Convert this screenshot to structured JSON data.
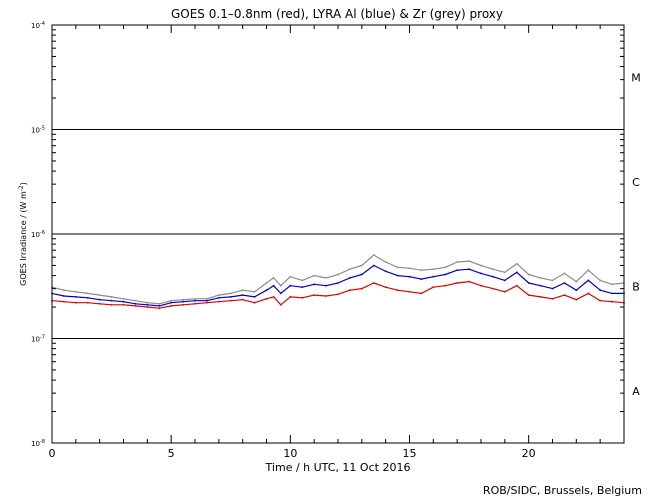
{
  "chart_data": {
    "type": "line",
    "title": "GOES 0.1–0.8nm (red), LYRA Al (blue) & Zr (grey) proxy",
    "xlabel": "Time / h UTC, 11 Oct 2016",
    "ylabel": "GOES Irradiance / (W m",
    "ylabel_exp": "-2",
    "ylabel_close": ")",
    "x_range": [
      0,
      24
    ],
    "y_range_log10": [
      -8,
      -4
    ],
    "x_ticks": [
      {
        "value": 0,
        "label": "0"
      },
      {
        "value": 5,
        "label": "5"
      },
      {
        "value": 10,
        "label": "10"
      },
      {
        "value": 15,
        "label": "15"
      },
      {
        "value": 20,
        "label": "20"
      }
    ],
    "y_ticks": [
      {
        "value": -8,
        "base": "10",
        "exp": "-8"
      },
      {
        "value": -7,
        "base": "10",
        "exp": "-7"
      },
      {
        "value": -6,
        "base": "10",
        "exp": "-6"
      },
      {
        "value": -5,
        "base": "10",
        "exp": "-5"
      },
      {
        "value": -4,
        "base": "10",
        "exp": "-4"
      }
    ],
    "flare_class_lines": [
      -7,
      -6,
      -5
    ],
    "flare_classes": [
      {
        "label": "A",
        "center": -7.5
      },
      {
        "label": "B",
        "center": -6.5
      },
      {
        "label": "C",
        "center": -5.5
      },
      {
        "label": "M",
        "center": -4.5
      }
    ],
    "series": [
      {
        "name": "LYRA Zr (grey) proxy",
        "color": "#8c8c8c",
        "x": [
          0,
          0.5,
          1,
          1.5,
          2,
          2.5,
          3,
          3.5,
          4,
          4.5,
          5,
          5.5,
          6,
          6.5,
          7,
          7.5,
          8,
          8.5,
          9,
          9.3,
          9.6,
          10,
          10.5,
          11,
          11.5,
          12,
          12.5,
          13,
          13.5,
          14,
          14.5,
          15,
          15.5,
          16,
          16.5,
          17,
          17.5,
          18,
          18.5,
          19,
          19.5,
          20,
          20.5,
          21,
          21.5,
          22,
          22.5,
          23,
          23.5,
          24
        ],
        "values": [
          3.1e-07,
          2.9e-07,
          2.8e-07,
          2.7e-07,
          2.6e-07,
          2.5e-07,
          2.4e-07,
          2.3e-07,
          2.2e-07,
          2.15e-07,
          2.3e-07,
          2.35e-07,
          2.4e-07,
          2.4e-07,
          2.6e-07,
          2.7e-07,
          2.9e-07,
          2.8e-07,
          3.4e-07,
          3.8e-07,
          3.2e-07,
          3.9e-07,
          3.6e-07,
          4e-07,
          3.8e-07,
          4.1e-07,
          4.6e-07,
          5e-07,
          6.3e-07,
          5.4e-07,
          4.8e-07,
          4.7e-07,
          4.5e-07,
          4.6e-07,
          4.8e-07,
          5.4e-07,
          5.5e-07,
          5e-07,
          4.6e-07,
          4.3e-07,
          5.2e-07,
          4.1e-07,
          3.8e-07,
          3.6e-07,
          4.2e-07,
          3.5e-07,
          4.5e-07,
          3.6e-07,
          3.3e-07,
          3.4e-07
        ]
      },
      {
        "name": "LYRA Al (blue) proxy",
        "color": "#0000cc",
        "x": [
          0,
          0.5,
          1,
          1.5,
          2,
          2.5,
          3,
          3.5,
          4,
          4.5,
          5,
          5.5,
          6,
          6.5,
          7,
          7.5,
          8,
          8.5,
          9,
          9.3,
          9.6,
          10,
          10.5,
          11,
          11.5,
          12,
          12.5,
          13,
          13.5,
          14,
          14.5,
          15,
          15.5,
          16,
          16.5,
          17,
          17.5,
          18,
          18.5,
          19,
          19.5,
          20,
          20.5,
          21,
          21.5,
          22,
          22.5,
          23,
          23.5,
          24
        ],
        "values": [
          2.7e-07,
          2.55e-07,
          2.5e-07,
          2.45e-07,
          2.35e-07,
          2.3e-07,
          2.25e-07,
          2.15e-07,
          2.1e-07,
          2.05e-07,
          2.2e-07,
          2.25e-07,
          2.3e-07,
          2.3e-07,
          2.45e-07,
          2.5e-07,
          2.6e-07,
          2.5e-07,
          2.9e-07,
          3.2e-07,
          2.7e-07,
          3.2e-07,
          3.1e-07,
          3.3e-07,
          3.2e-07,
          3.4e-07,
          3.8e-07,
          4.1e-07,
          5e-07,
          4.4e-07,
          4e-07,
          3.9e-07,
          3.7e-07,
          3.9e-07,
          4.1e-07,
          4.5e-07,
          4.6e-07,
          4.2e-07,
          3.9e-07,
          3.6e-07,
          4.3e-07,
          3.4e-07,
          3.2e-07,
          3e-07,
          3.4e-07,
          2.9e-07,
          3.6e-07,
          2.9e-07,
          2.7e-07,
          2.7e-07
        ]
      },
      {
        "name": "GOES 0.1–0.8nm (red)",
        "color": "#e00000",
        "x": [
          0,
          0.5,
          1,
          1.5,
          2,
          2.5,
          3,
          3.5,
          4,
          4.5,
          5,
          5.5,
          6,
          6.5,
          7,
          7.5,
          8,
          8.5,
          9,
          9.3,
          9.6,
          10,
          10.5,
          11,
          11.5,
          12,
          12.5,
          13,
          13.5,
          14,
          14.5,
          15,
          15.5,
          16,
          16.5,
          17,
          17.5,
          18,
          18.5,
          19,
          19.5,
          20,
          20.5,
          21,
          21.5,
          22,
          22.5,
          23,
          23.5,
          24
        ],
        "values": [
          2.3e-07,
          2.25e-07,
          2.2e-07,
          2.2e-07,
          2.15e-07,
          2.1e-07,
          2.1e-07,
          2.05e-07,
          2e-07,
          1.95e-07,
          2.05e-07,
          2.1e-07,
          2.15e-07,
          2.2e-07,
          2.25e-07,
          2.3e-07,
          2.35e-07,
          2.2e-07,
          2.4e-07,
          2.5e-07,
          2.1e-07,
          2.5e-07,
          2.45e-07,
          2.6e-07,
          2.55e-07,
          2.65e-07,
          2.9e-07,
          3e-07,
          3.4e-07,
          3.1e-07,
          2.9e-07,
          2.8e-07,
          2.7e-07,
          3.1e-07,
          3.2e-07,
          3.4e-07,
          3.5e-07,
          3.2e-07,
          3e-07,
          2.8e-07,
          3.2e-07,
          2.6e-07,
          2.5e-07,
          2.4e-07,
          2.6e-07,
          2.35e-07,
          2.7e-07,
          2.3e-07,
          2.25e-07,
          2.2e-07
        ]
      }
    ]
  },
  "footer": {
    "credit": "ROB/SIDC, Brussels, Belgium"
  }
}
